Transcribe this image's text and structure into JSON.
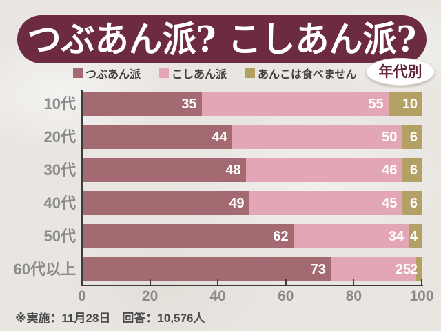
{
  "title": "つぶあん派? こしあん派?",
  "badge": "年代別",
  "legend": [
    {
      "label": "つぶあん派",
      "color": "#a36a71"
    },
    {
      "label": "こしあん派",
      "color": "#e3a6b6"
    },
    {
      "label": "あんこは食べません",
      "color": "#b2a065"
    }
  ],
  "chart_data": {
    "type": "bar",
    "orientation": "horizontal",
    "stacked": true,
    "title": "つぶあん派? こしあん派?",
    "subtitle": "年代別",
    "categories": [
      "10代",
      "20代",
      "30代",
      "40代",
      "50代",
      "60代以上"
    ],
    "series": [
      {
        "name": "つぶあん派",
        "color": "#a36a71",
        "values": [
          35,
          44,
          48,
          49,
          62,
          73
        ]
      },
      {
        "name": "こしあん派",
        "color": "#e3a6b6",
        "values": [
          55,
          50,
          46,
          45,
          34,
          25
        ]
      },
      {
        "name": "あんこは食べません",
        "color": "#b2a065",
        "values": [
          10,
          6,
          6,
          6,
          4,
          2
        ]
      }
    ],
    "xlim": [
      0,
      100
    ],
    "xticks": [
      0,
      20,
      40,
      60,
      80,
      100
    ],
    "legend_position": "top",
    "grid": false,
    "value_labels": "inside-right"
  },
  "footer": "※実施：11月28日　回答：10,576人",
  "colors": {
    "background": "#e9e6e2",
    "title_bar": "#6d2b42",
    "title_text": "#ffffff",
    "badge_bg": "#ffffff",
    "badge_text": "#5f2335",
    "category_label": "#8b8b8b",
    "axis": "#3b3b3b",
    "tick_label": "#8a8a8a",
    "footer_text": "#4b4b4b"
  }
}
